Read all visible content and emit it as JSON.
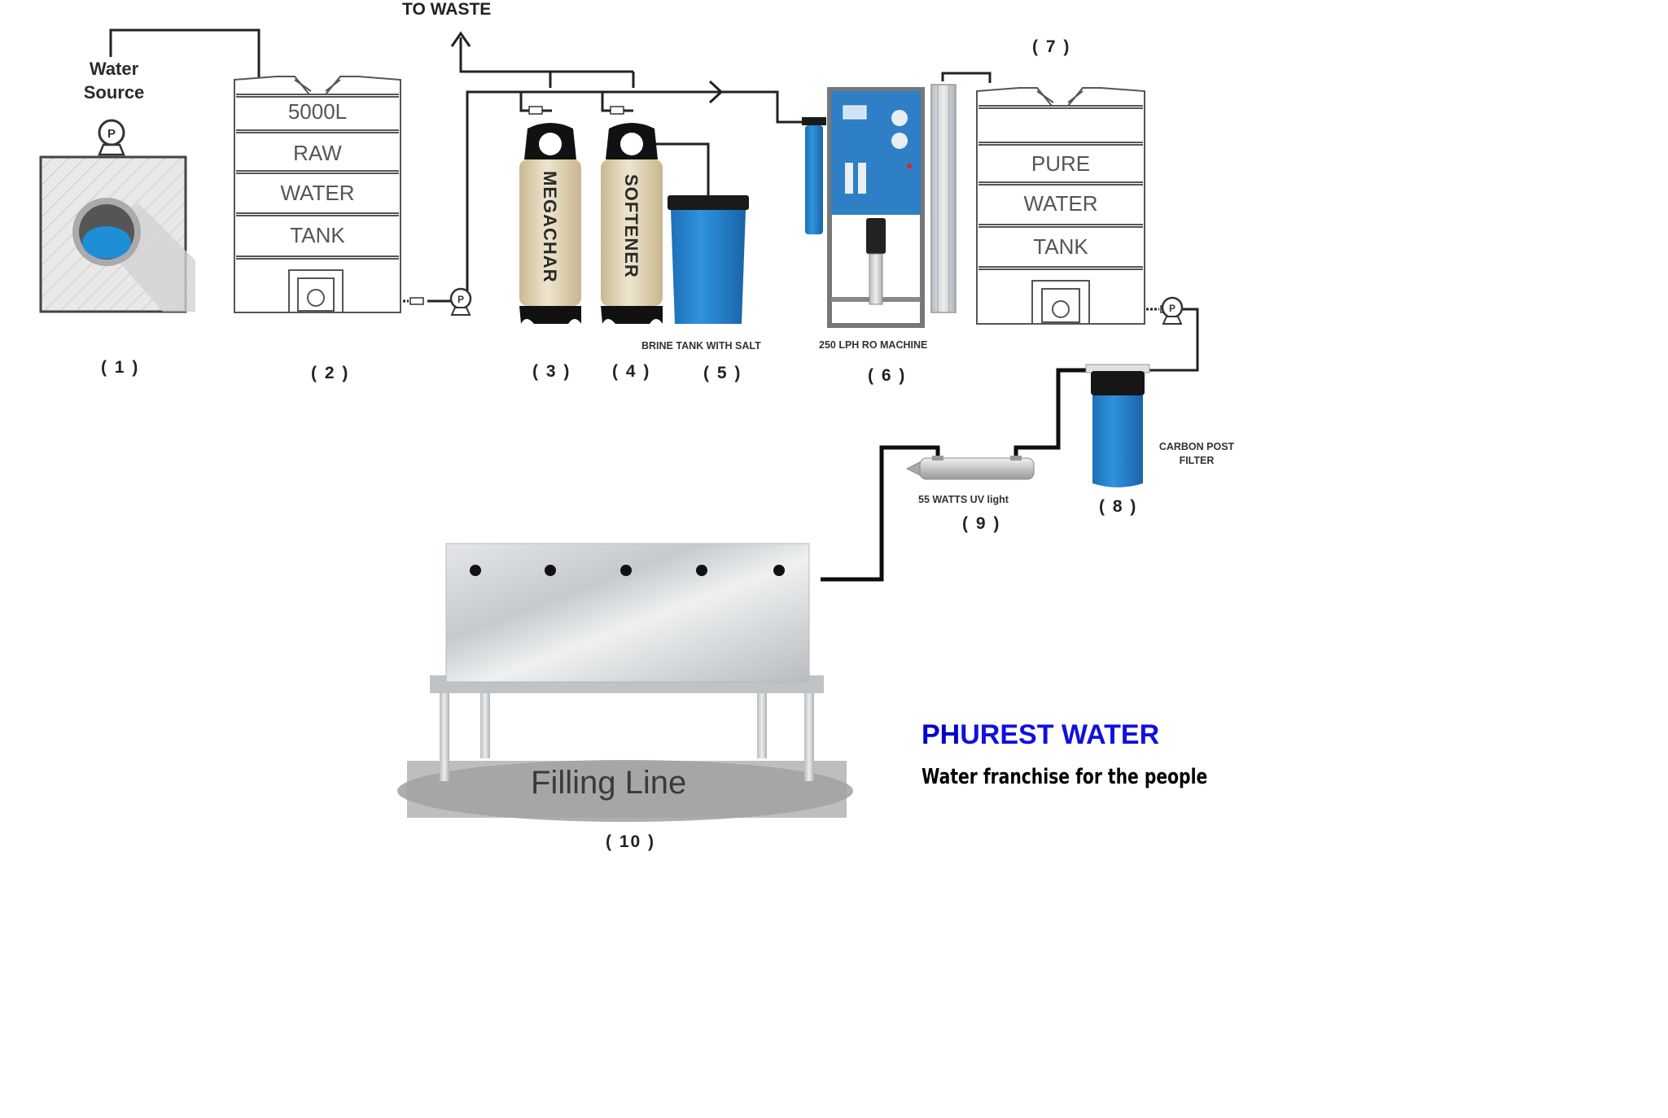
{
  "labels": {
    "to_waste": "TO WASTE",
    "water_source": "Water\nSource",
    "raw_tank_capacity": "5000L",
    "raw_tank_line1": "RAW",
    "raw_tank_line2": "WATER",
    "raw_tank_line3": "TANK",
    "megachar": "MEGACHAR",
    "softener": "SOFTENER",
    "brine_tank": "BRINE TANK WITH SALT",
    "ro_machine": "250 LPH RO MACHINE",
    "pure_tank_line1": "PURE",
    "pure_tank_line2": "WATER",
    "pure_tank_line3": "TANK",
    "carbon_filter": "CARBON POST\nFILTER",
    "uv_light": "55 WATTS UV light",
    "filling_line": "Filling Line",
    "pump_symbol": "P"
  },
  "step_numbers": {
    "n1": "( 1 )",
    "n2": "( 2 )",
    "n3": "( 3 )",
    "n4": "( 4 )",
    "n5": "( 5 )",
    "n6": "( 6 )",
    "n7": "( 7 )",
    "n8": "( 8 )",
    "n9": "( 9 )",
    "n10": "( 10 )"
  },
  "branding": {
    "name_part1": "PH",
    "name_part2": "UREST WATER",
    "tagline": "Water franchise for the people"
  },
  "colors": {
    "pipe": "#111111",
    "pipe_gray": "#444444",
    "water_blue": "#1e8fd6",
    "ro_blue": "#2f7fc7",
    "vessel_tan": "#ddd0b6",
    "brand_blue": "#1010e0",
    "steel": "#cfd3d6"
  }
}
